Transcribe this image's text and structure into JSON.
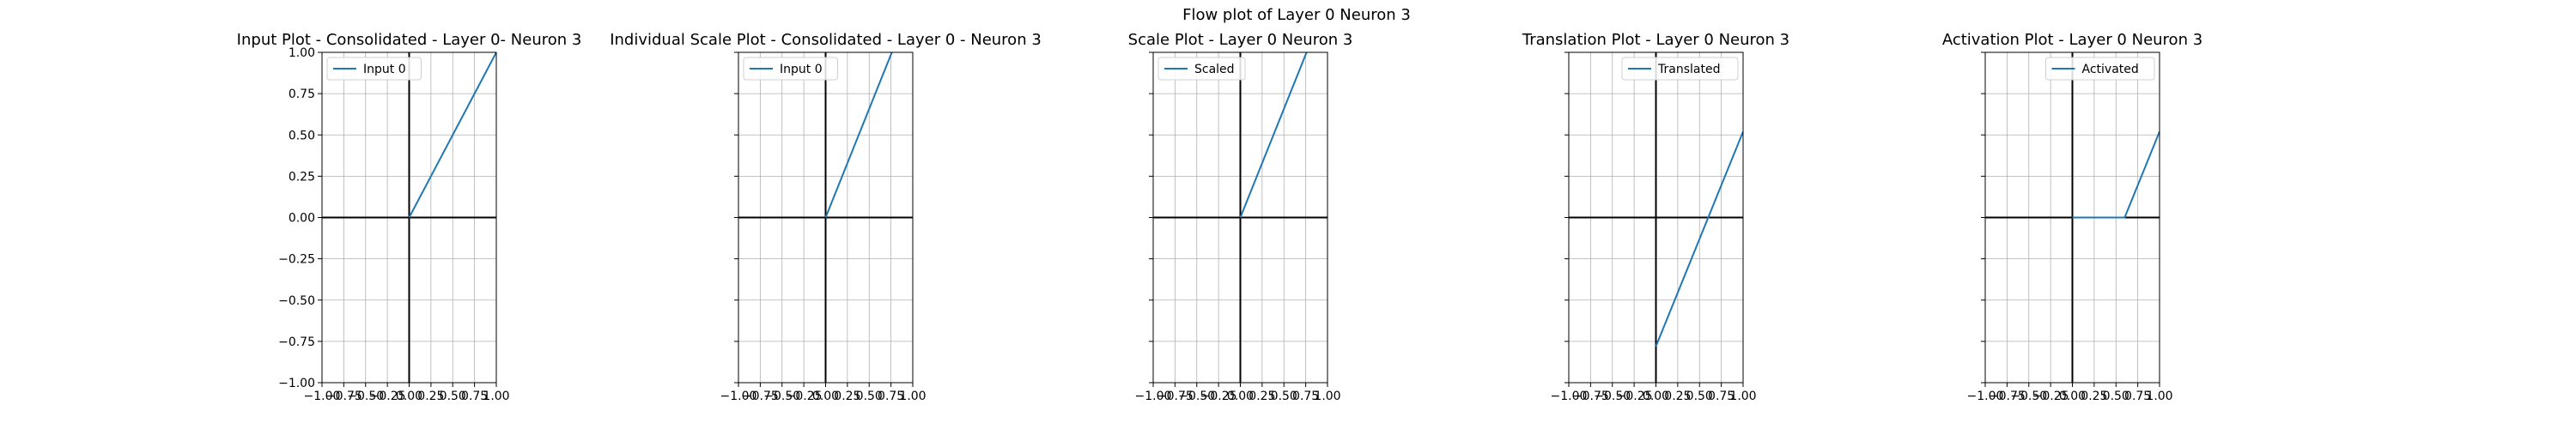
{
  "figure": {
    "suptitle": "Flow plot of Layer 0 Neuron 3"
  },
  "chart_data": [
    {
      "type": "line",
      "title": "Input Plot - Consolidated - Layer 0- Neuron 3",
      "xlabel": "",
      "ylabel": "",
      "xlim": [
        -1.0,
        1.0
      ],
      "ylim": [
        -1.0,
        1.0
      ],
      "xticks": [
        "−1.00",
        "−0.75",
        "−0.50",
        "−0.25",
        "0.00",
        "0.25",
        "0.50",
        "0.75",
        "1.00"
      ],
      "yticks": [
        "−1.00",
        "−0.75",
        "−0.50",
        "−0.25",
        "0.00",
        "0.25",
        "0.50",
        "0.75",
        "1.00"
      ],
      "show_yticklabels": true,
      "grid": true,
      "legend_position": "upper-left",
      "series": [
        {
          "name": "Input 0",
          "color": "#1f77b4",
          "x": [
            0.0,
            1.0
          ],
          "y": [
            0.0,
            1.0
          ]
        }
      ]
    },
    {
      "type": "line",
      "title": "Individual Scale Plot - Consolidated - Layer 0 - Neuron 3",
      "xlabel": "",
      "ylabel": "",
      "xlim": [
        -1.0,
        1.0
      ],
      "ylim": [
        -1.0,
        1.0
      ],
      "xticks": [
        "−1.00",
        "−0.75",
        "−0.50",
        "−0.25",
        "0.00",
        "0.25",
        "0.50",
        "0.75",
        "1.00"
      ],
      "yticks": [],
      "show_yticklabels": false,
      "grid": true,
      "legend_position": "upper-left",
      "series": [
        {
          "name": "Input 0",
          "color": "#1f77b4",
          "x": [
            0.0,
            0.76
          ],
          "y": [
            0.0,
            1.0
          ]
        }
      ]
    },
    {
      "type": "line",
      "title": "Scale Plot - Layer 0 Neuron 3",
      "xlabel": "",
      "ylabel": "",
      "xlim": [
        -1.0,
        1.0
      ],
      "ylim": [
        -1.0,
        1.0
      ],
      "xticks": [
        "−1.00",
        "−0.75",
        "−0.50",
        "−0.25",
        "0.00",
        "0.25",
        "0.50",
        "0.75",
        "1.00"
      ],
      "yticks": [],
      "show_yticklabels": false,
      "grid": true,
      "legend_position": "upper-left",
      "series": [
        {
          "name": "Scaled",
          "color": "#1f77b4",
          "x": [
            0.0,
            0.76
          ],
          "y": [
            0.0,
            1.0
          ]
        }
      ]
    },
    {
      "type": "line",
      "title": "Translation Plot - Layer 0 Neuron 3",
      "xlabel": "",
      "ylabel": "",
      "xlim": [
        -1.0,
        1.0
      ],
      "ylim": [
        -1.0,
        1.0
      ],
      "xticks": [
        "−1.00",
        "−0.75",
        "−0.50",
        "−0.25",
        "0.00",
        "0.25",
        "0.50",
        "0.75",
        "1.00"
      ],
      "yticks": [],
      "show_yticklabels": false,
      "grid": true,
      "legend_position": "upper-right",
      "series": [
        {
          "name": "Translated",
          "color": "#1f77b4",
          "x": [
            0.0,
            1.0
          ],
          "y": [
            -0.78,
            0.52
          ]
        }
      ]
    },
    {
      "type": "line",
      "title": "Activation Plot - Layer 0 Neuron 3",
      "xlabel": "",
      "ylabel": "",
      "xlim": [
        -1.0,
        1.0
      ],
      "ylim": [
        -1.0,
        1.0
      ],
      "xticks": [
        "−1.00",
        "−0.75",
        "−0.50",
        "−0.25",
        "0.00",
        "0.25",
        "0.50",
        "0.75",
        "1.00"
      ],
      "yticks": [],
      "show_yticklabels": false,
      "grid": true,
      "legend_position": "upper-right",
      "series": [
        {
          "name": "Activated",
          "color": "#1f77b4",
          "x": [
            0.0,
            0.6,
            1.0
          ],
          "y": [
            0.0,
            0.0,
            0.52
          ]
        }
      ]
    }
  ]
}
